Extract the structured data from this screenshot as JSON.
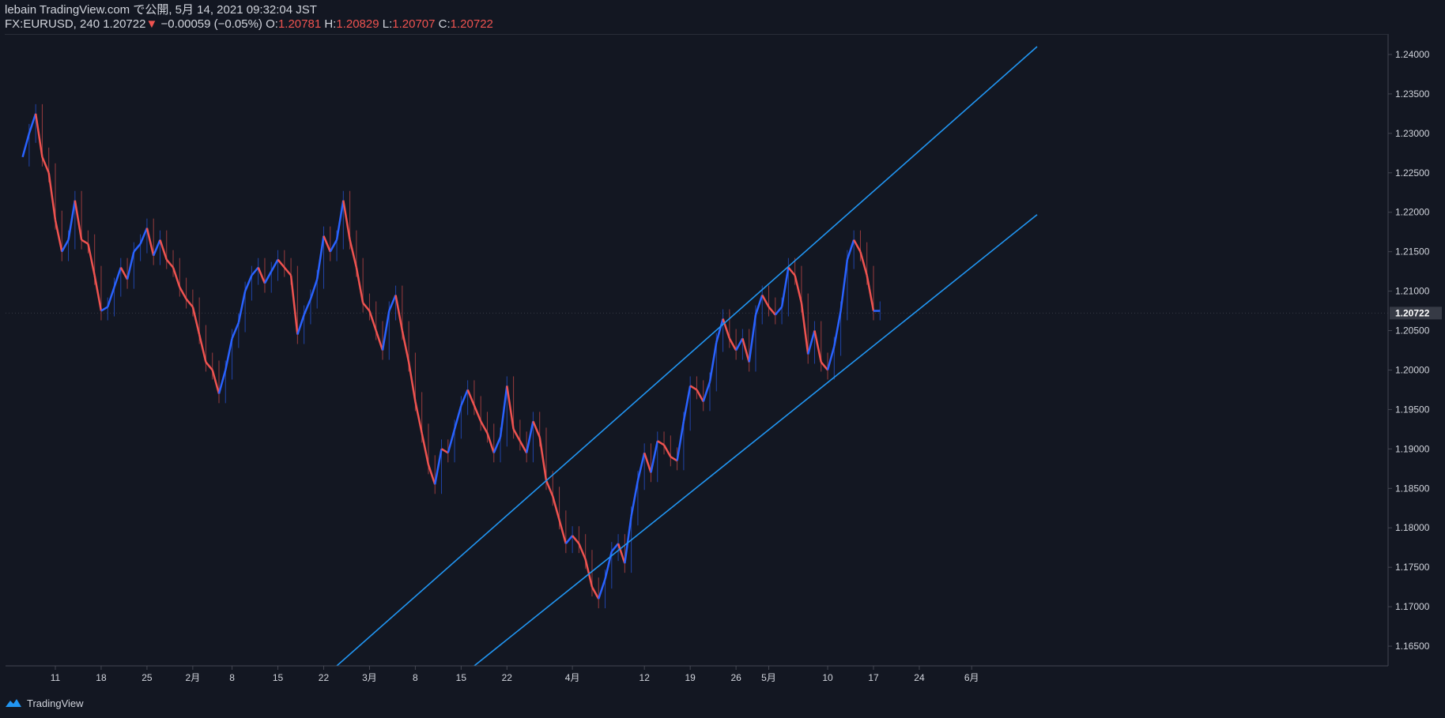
{
  "header": {
    "line1": "lebain TradingView.com で公開, 5月 14, 2021 09:32:04 JST",
    "symbol": "FX:EURUSD, 240",
    "last": "1.20722",
    "arrow": "▼",
    "change": "−0.00059 (−0.05%)",
    "o_label": "O:",
    "o_value": "1.20781",
    "h_label": "H:",
    "h_value": "1.20829",
    "l_label": "L:",
    "l_value": "1.20707",
    "c_label": "C:",
    "c_value": "1.20722"
  },
  "footer": {
    "brand": "TradingView"
  },
  "colors": {
    "background": "#131722",
    "up": "#2962ff",
    "down": "#ef5350",
    "channel": "#2196f3",
    "text": "#d1d4dc"
  },
  "chart_data": {
    "type": "line",
    "title": "",
    "xlabel": "",
    "ylabel": "",
    "ylim": [
      1.1625,
      1.2425
    ],
    "y_ticks": [
      "1.16500",
      "1.17000",
      "1.17500",
      "1.18000",
      "1.18500",
      "1.19000",
      "1.19500",
      "1.20000",
      "1.20500",
      "1.21000",
      "1.21500",
      "1.22000",
      "1.22500",
      "1.23000",
      "1.23500",
      "1.24000"
    ],
    "x_ticks": [
      {
        "label": "11",
        "day": 11
      },
      {
        "label": "18",
        "day": 18
      },
      {
        "label": "25",
        "day": 25
      },
      {
        "label": "2月",
        "day": 32
      },
      {
        "label": "8",
        "day": 38
      },
      {
        "label": "15",
        "day": 45
      },
      {
        "label": "22",
        "day": 52
      },
      {
        "label": "3月",
        "day": 59
      },
      {
        "label": "8",
        "day": 66
      },
      {
        "label": "15",
        "day": 73
      },
      {
        "label": "22",
        "day": 80
      },
      {
        "label": "4月",
        "day": 90
      },
      {
        "label": "12",
        "day": 101
      },
      {
        "label": "19",
        "day": 108
      },
      {
        "label": "26",
        "day": 115
      },
      {
        "label": "5月",
        "day": 120
      },
      {
        "label": "10",
        "day": 129
      },
      {
        "label": "17",
        "day": 136
      },
      {
        "label": "24",
        "day": 143
      },
      {
        "label": "6月",
        "day": 151
      }
    ],
    "last_price_label": "1.20722",
    "last_price": 1.20722,
    "series": [
      {
        "name": "",
        "points": [
          [
            6,
            1.227
          ],
          [
            7,
            1.23
          ],
          [
            8,
            1.2325
          ],
          [
            9,
            1.227
          ],
          [
            10,
            1.225
          ],
          [
            11,
            1.219
          ],
          [
            12,
            1.215
          ],
          [
            13,
            1.2165
          ],
          [
            14,
            1.2215
          ],
          [
            15,
            1.2165
          ],
          [
            16,
            1.216
          ],
          [
            17,
            1.212
          ],
          [
            18,
            1.2075
          ],
          [
            19,
            1.208
          ],
          [
            20,
            1.2105
          ],
          [
            21,
            1.213
          ],
          [
            22,
            1.2115
          ],
          [
            23,
            1.215
          ],
          [
            24,
            1.216
          ],
          [
            25,
            1.218
          ],
          [
            26,
            1.2145
          ],
          [
            27,
            1.2165
          ],
          [
            28,
            1.214
          ],
          [
            29,
            1.213
          ],
          [
            30,
            1.2105
          ],
          [
            31,
            1.209
          ],
          [
            32,
            1.208
          ],
          [
            33,
            1.2045
          ],
          [
            34,
            1.201
          ],
          [
            35,
            1.2
          ],
          [
            36,
            1.197
          ],
          [
            37,
            1.2
          ],
          [
            38,
            1.204
          ],
          [
            39,
            1.206
          ],
          [
            40,
            1.21
          ],
          [
            41,
            1.212
          ],
          [
            42,
            1.213
          ],
          [
            43,
            1.211
          ],
          [
            44,
            1.2125
          ],
          [
            45,
            1.214
          ],
          [
            46,
            1.213
          ],
          [
            47,
            1.212
          ],
          [
            48,
            1.2045
          ],
          [
            49,
            1.207
          ],
          [
            50,
            1.209
          ],
          [
            51,
            1.2115
          ],
          [
            52,
            1.217
          ],
          [
            53,
            1.215
          ],
          [
            54,
            1.2165
          ],
          [
            55,
            1.2215
          ],
          [
            56,
            1.2165
          ],
          [
            57,
            1.213
          ],
          [
            58,
            1.2085
          ],
          [
            59,
            1.2075
          ],
          [
            60,
            1.205
          ],
          [
            61,
            1.2025
          ],
          [
            62,
            1.2075
          ],
          [
            63,
            1.2095
          ],
          [
            64,
            1.205
          ],
          [
            65,
            1.201
          ],
          [
            66,
            1.196
          ],
          [
            67,
            1.192
          ],
          [
            68,
            1.188
          ],
          [
            69,
            1.1855
          ],
          [
            70,
            1.19
          ],
          [
            71,
            1.1895
          ],
          [
            72,
            1.1925
          ],
          [
            73,
            1.1955
          ],
          [
            74,
            1.1975
          ],
          [
            75,
            1.1955
          ],
          [
            76,
            1.1935
          ],
          [
            77,
            1.192
          ],
          [
            78,
            1.1895
          ],
          [
            79,
            1.1915
          ],
          [
            80,
            1.198
          ],
          [
            81,
            1.1925
          ],
          [
            82,
            1.191
          ],
          [
            83,
            1.1895
          ],
          [
            84,
            1.1935
          ],
          [
            85,
            1.1915
          ],
          [
            86,
            1.186
          ],
          [
            87,
            1.184
          ],
          [
            88,
            1.181
          ],
          [
            89,
            1.178
          ],
          [
            90,
            1.179
          ],
          [
            91,
            1.178
          ],
          [
            92,
            1.176
          ],
          [
            93,
            1.1725
          ],
          [
            94,
            1.171
          ],
          [
            95,
            1.1735
          ],
          [
            96,
            1.177
          ],
          [
            97,
            1.178
          ],
          [
            98,
            1.1755
          ],
          [
            99,
            1.1815
          ],
          [
            100,
            1.186
          ],
          [
            101,
            1.1895
          ],
          [
            102,
            1.187
          ],
          [
            103,
            1.191
          ],
          [
            104,
            1.1905
          ],
          [
            105,
            1.189
          ],
          [
            106,
            1.1885
          ],
          [
            107,
            1.1935
          ],
          [
            108,
            1.198
          ],
          [
            109,
            1.1975
          ],
          [
            110,
            1.196
          ],
          [
            111,
            1.1985
          ],
          [
            112,
            1.2035
          ],
          [
            113,
            1.2065
          ],
          [
            114,
            1.204
          ],
          [
            115,
            1.2025
          ],
          [
            116,
            1.204
          ],
          [
            117,
            1.201
          ],
          [
            118,
            1.207
          ],
          [
            119,
            1.2095
          ],
          [
            120,
            1.208
          ],
          [
            121,
            1.207
          ],
          [
            122,
            1.208
          ],
          [
            123,
            1.213
          ],
          [
            124,
            1.212
          ],
          [
            125,
            1.2085
          ],
          [
            126,
            1.202
          ],
          [
            127,
            1.205
          ],
          [
            128,
            1.201
          ],
          [
            129,
            1.2
          ],
          [
            130,
            1.203
          ],
          [
            131,
            1.2075
          ],
          [
            132,
            1.214
          ],
          [
            133,
            1.2165
          ],
          [
            134,
            1.215
          ],
          [
            135,
            1.212
          ],
          [
            136,
            1.2075
          ],
          [
            137,
            1.2075
          ]
        ]
      }
    ],
    "channel_lines": [
      {
        "x1": 54,
        "y1": 1.1625,
        "x2": 161,
        "y2": 1.241
      },
      {
        "x1": 75,
        "y1": 1.1625,
        "x2": 161,
        "y2": 1.2197
      }
    ]
  }
}
